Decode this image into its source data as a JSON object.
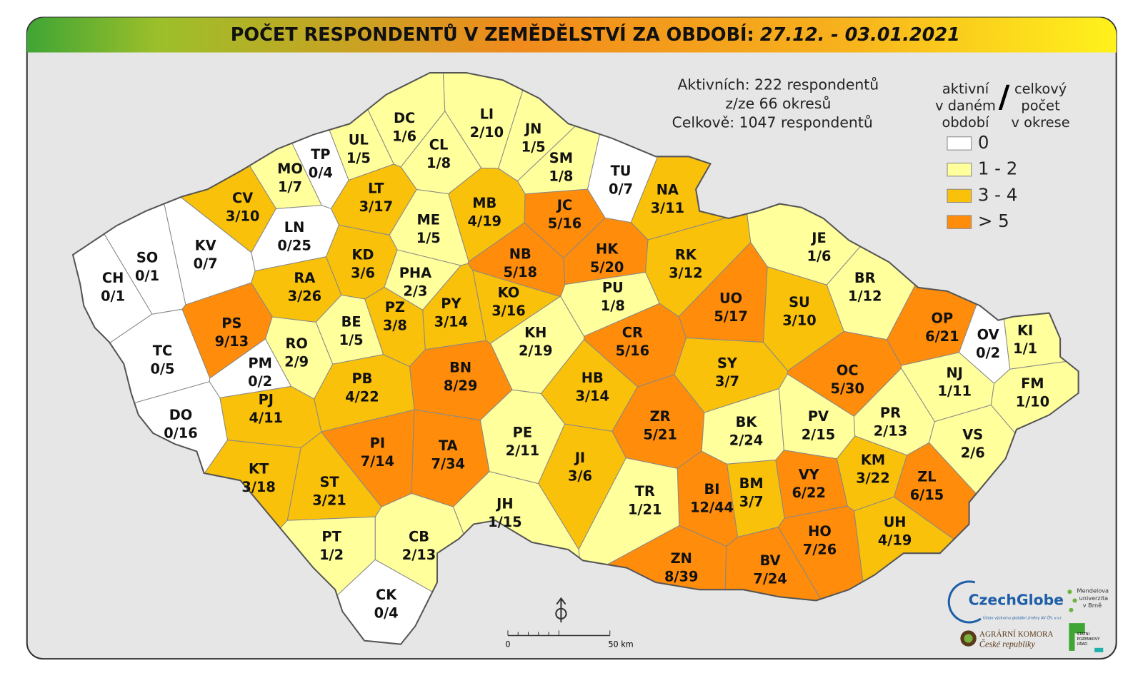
{
  "header": {
    "title": "POČET RESPONDENTŮ V ZEMĚDĚLSTVÍ ZA OBDOBÍ:",
    "period": "27.12. - 03.01.2021"
  },
  "summary": [
    "Aktivních: 222 respondentů",
    "z/ze 66 okresů",
    "Celkově: 1047 respondentů"
  ],
  "legend": {
    "left_header": [
      "aktivní",
      "v daném",
      "období"
    ],
    "separator": "/",
    "right_header": [
      "celkový",
      "počet",
      "v okrese"
    ],
    "items": [
      {
        "label": "0",
        "color": "#ffffff"
      },
      {
        "label": "1 - 2",
        "color": "#ffff9c"
      },
      {
        "label": "3 - 4",
        "color": "#f9c10a"
      },
      {
        "label": "> 5",
        "color": "#ff8c0a"
      }
    ]
  },
  "districts": [
    {
      "code": "DC",
      "value": "1/6",
      "color": "#ffff9c"
    },
    {
      "code": "LI",
      "value": "2/10",
      "color": "#ffff9c"
    },
    {
      "code": "JN",
      "value": "1/5",
      "color": "#ffff9c"
    },
    {
      "code": "CL",
      "value": "1/8",
      "color": "#ffff9c"
    },
    {
      "code": "UL",
      "value": "1/5",
      "color": "#ffff9c"
    },
    {
      "code": "TP",
      "value": "0/4",
      "color": "#ffffff"
    },
    {
      "code": "MO",
      "value": "1/7",
      "color": "#ffff9c"
    },
    {
      "code": "SM",
      "value": "1/8",
      "color": "#ffff9c"
    },
    {
      "code": "TU",
      "value": "0/7",
      "color": "#ffffff"
    },
    {
      "code": "NA",
      "value": "3/11",
      "color": "#f9c10a"
    },
    {
      "code": "CV",
      "value": "3/10",
      "color": "#f9c10a"
    },
    {
      "code": "LT",
      "value": "3/17",
      "color": "#f9c10a"
    },
    {
      "code": "MB",
      "value": "4/19",
      "color": "#f9c10a"
    },
    {
      "code": "JC",
      "value": "5/16",
      "color": "#ff8c0a"
    },
    {
      "code": "ME",
      "value": "1/5",
      "color": "#ffff9c"
    },
    {
      "code": "LN",
      "value": "0/25",
      "color": "#ffffff"
    },
    {
      "code": "KV",
      "value": "0/7",
      "color": "#ffffff"
    },
    {
      "code": "SO",
      "value": "0/1",
      "color": "#ffffff"
    },
    {
      "code": "CH",
      "value": "0/1",
      "color": "#ffffff"
    },
    {
      "code": "KD",
      "value": "3/6",
      "color": "#f9c10a"
    },
    {
      "code": "NB",
      "value": "5/18",
      "color": "#ff8c0a"
    },
    {
      "code": "HK",
      "value": "5/20",
      "color": "#ff8c0a"
    },
    {
      "code": "RK",
      "value": "3/12",
      "color": "#f9c10a"
    },
    {
      "code": "JE",
      "value": "1/6",
      "color": "#ffff9c"
    },
    {
      "code": "PHA",
      "value": "2/3",
      "color": "#ffff9c"
    },
    {
      "code": "RA",
      "value": "3/26",
      "color": "#f9c10a"
    },
    {
      "code": "BR",
      "value": "1/12",
      "color": "#ffff9c"
    },
    {
      "code": "UO",
      "value": "5/17",
      "color": "#ff8c0a"
    },
    {
      "code": "SU",
      "value": "3/10",
      "color": "#f9c10a"
    },
    {
      "code": "OP",
      "value": "6/21",
      "color": "#ff8c0a"
    },
    {
      "code": "KI",
      "value": "1/1",
      "color": "#ffff9c"
    },
    {
      "code": "OV",
      "value": "0/2",
      "color": "#ffffff"
    },
    {
      "code": "PU",
      "value": "1/8",
      "color": "#ffff9c"
    },
    {
      "code": "KO",
      "value": "3/16",
      "color": "#f9c10a"
    },
    {
      "code": "PY",
      "value": "3/14",
      "color": "#f9c10a"
    },
    {
      "code": "PZ",
      "value": "3/8",
      "color": "#f9c10a"
    },
    {
      "code": "PS",
      "value": "9/13",
      "color": "#ff8c0a"
    },
    {
      "code": "BE",
      "value": "1/5",
      "color": "#ffff9c"
    },
    {
      "code": "CR",
      "value": "5/16",
      "color": "#ff8c0a"
    },
    {
      "code": "KH",
      "value": "2/19",
      "color": "#ffff9c"
    },
    {
      "code": "RO",
      "value": "2/9",
      "color": "#ffff9c"
    },
    {
      "code": "TC",
      "value": "0/5",
      "color": "#ffffff"
    },
    {
      "code": "SY",
      "value": "3/7",
      "color": "#f9c10a"
    },
    {
      "code": "OC",
      "value": "5/30",
      "color": "#ff8c0a"
    },
    {
      "code": "NJ",
      "value": "1/11",
      "color": "#ffff9c"
    },
    {
      "code": "FM",
      "value": "1/10",
      "color": "#ffff9c"
    },
    {
      "code": "PM",
      "value": "0/2",
      "color": "#ffffff"
    },
    {
      "code": "BN",
      "value": "8/29",
      "color": "#ff8c0a"
    },
    {
      "code": "HB",
      "value": "3/14",
      "color": "#f9c10a"
    },
    {
      "code": "PB",
      "value": "4/22",
      "color": "#f9c10a"
    },
    {
      "code": "PJ",
      "value": "4/11",
      "color": "#f9c10a"
    },
    {
      "code": "DO",
      "value": "0/16",
      "color": "#ffffff"
    },
    {
      "code": "ZR",
      "value": "5/21",
      "color": "#ff8c0a"
    },
    {
      "code": "BK",
      "value": "2/24",
      "color": "#ffff9c"
    },
    {
      "code": "PV",
      "value": "2/15",
      "color": "#ffff9c"
    },
    {
      "code": "PR",
      "value": "2/13",
      "color": "#ffff9c"
    },
    {
      "code": "VS",
      "value": "2/6",
      "color": "#ffff9c"
    },
    {
      "code": "PE",
      "value": "2/11",
      "color": "#ffff9c"
    },
    {
      "code": "PI",
      "value": "7/14",
      "color": "#ff8c0a"
    },
    {
      "code": "TA",
      "value": "7/34",
      "color": "#ff8c0a"
    },
    {
      "code": "JI",
      "value": "3/6",
      "color": "#f9c10a"
    },
    {
      "code": "KM",
      "value": "3/22",
      "color": "#f9c10a"
    },
    {
      "code": "ZL",
      "value": "6/15",
      "color": "#ff8c0a"
    },
    {
      "code": "KT",
      "value": "3/18",
      "color": "#f9c10a"
    },
    {
      "code": "ST",
      "value": "3/21",
      "color": "#f9c10a"
    },
    {
      "code": "BI",
      "value": "12/44",
      "color": "#ff8c0a"
    },
    {
      "code": "BM",
      "value": "3/7",
      "color": "#f9c10a"
    },
    {
      "code": "VY",
      "value": "6/22",
      "color": "#ff8c0a"
    },
    {
      "code": "TR",
      "value": "1/21",
      "color": "#ffff9c"
    },
    {
      "code": "JH",
      "value": "1/15",
      "color": "#ffff9c"
    },
    {
      "code": "HO",
      "value": "7/26",
      "color": "#ff8c0a"
    },
    {
      "code": "UH",
      "value": "4/19",
      "color": "#f9c10a"
    },
    {
      "code": "PT",
      "value": "1/2",
      "color": "#ffff9c"
    },
    {
      "code": "CB",
      "value": "2/13",
      "color": "#ffff9c"
    },
    {
      "code": "ZN",
      "value": "8/39",
      "color": "#ff8c0a"
    },
    {
      "code": "BV",
      "value": "7/24",
      "color": "#ff8c0a"
    },
    {
      "code": "CK",
      "value": "0/4",
      "color": "#ffffff"
    }
  ],
  "scale_bar": {
    "start": "0",
    "end": "50 km"
  },
  "logos": {
    "czechglobe": "CzechGlobe",
    "czechglobe_sub": "Ústav výzkumu globální změny AV ČR, v.v.i.",
    "mendelu": [
      "Mendelova",
      "univerzita",
      "v Brně"
    ],
    "agrarni": [
      "AGRÁRNÍ KOMORA",
      "České republiky"
    ],
    "spu": [
      "STÁTNÍ",
      "POZEMKOVÝ",
      "ÚŘAD"
    ]
  }
}
